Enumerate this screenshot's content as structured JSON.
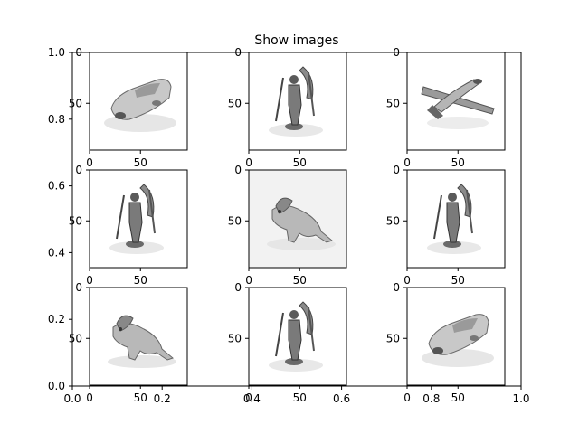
{
  "title": "Show images",
  "chart_data": {
    "type": "image_grid",
    "title": "Show images",
    "grid": [
      3,
      3
    ],
    "background_axes": {
      "xlim": [
        0.0,
        1.0
      ],
      "ylim": [
        0.0,
        1.0
      ],
      "x_ticks": [
        "0.0",
        "0.2",
        "0.4",
        "0.6",
        "0.8",
        "1.0"
      ],
      "y_ticks": [
        "0.0",
        "0.2",
        "0.4",
        "0.6",
        "0.8",
        "1.0"
      ]
    },
    "subplot_ticks": {
      "x": [
        "0",
        "50"
      ],
      "y": [
        "0",
        "50"
      ]
    },
    "panels": [
      {
        "object": "car",
        "background": "#ffffff"
      },
      {
        "object": "figurine",
        "background": "#ffffff"
      },
      {
        "object": "airplane",
        "background": "#ffffff"
      },
      {
        "object": "figurine",
        "background": "#ffffff"
      },
      {
        "object": "elephant",
        "background": "#f2f2f2"
      },
      {
        "object": "figurine",
        "background": "#ffffff"
      },
      {
        "object": "elephant",
        "background": "#ffffff"
      },
      {
        "object": "figurine",
        "background": "#ffffff"
      },
      {
        "object": "car",
        "background": "#ffffff"
      }
    ]
  }
}
